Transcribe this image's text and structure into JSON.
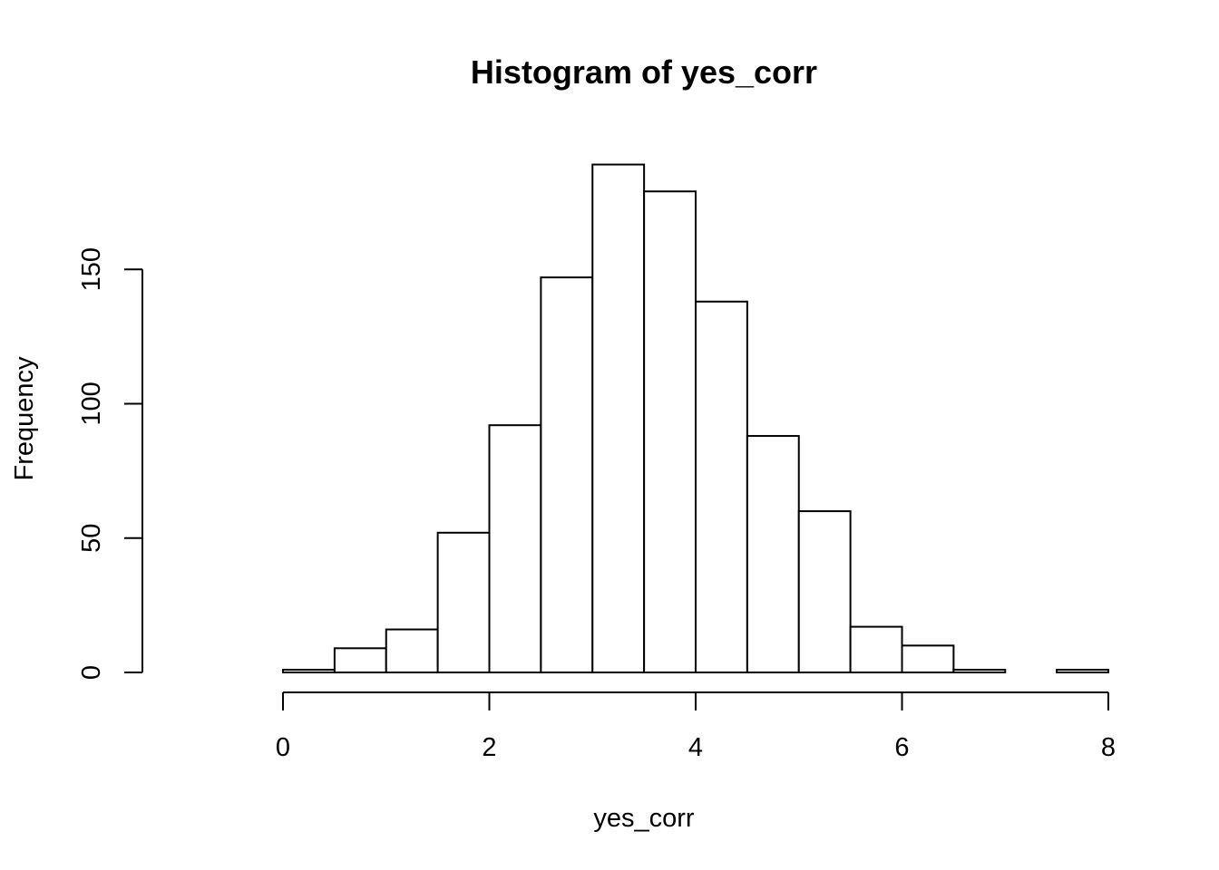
{
  "chart_data": {
    "type": "bar",
    "title": "Histogram of yes_corr",
    "xlabel": "yes_corr",
    "ylabel": "Frequency",
    "bin_width": 0.5,
    "bins": [
      {
        "start": -1.0,
        "end": -0.5,
        "count": 0
      },
      {
        "start": -0.5,
        "end": 0.0,
        "count": 0
      },
      {
        "start": 0.0,
        "end": 0.5,
        "count": 1
      },
      {
        "start": 0.5,
        "end": 1.0,
        "count": 9
      },
      {
        "start": 1.0,
        "end": 1.5,
        "count": 16
      },
      {
        "start": 1.5,
        "end": 2.0,
        "count": 52
      },
      {
        "start": 2.0,
        "end": 2.5,
        "count": 92
      },
      {
        "start": 2.5,
        "end": 3.0,
        "count": 147
      },
      {
        "start": 3.0,
        "end": 3.5,
        "count": 189
      },
      {
        "start": 3.5,
        "end": 4.0,
        "count": 179
      },
      {
        "start": 4.0,
        "end": 4.5,
        "count": 138
      },
      {
        "start": 4.5,
        "end": 5.0,
        "count": 88
      },
      {
        "start": 5.0,
        "end": 5.5,
        "count": 60
      },
      {
        "start": 5.5,
        "end": 6.0,
        "count": 17
      },
      {
        "start": 6.0,
        "end": 6.5,
        "count": 10
      },
      {
        "start": 6.5,
        "end": 7.0,
        "count": 1
      },
      {
        "start": 7.0,
        "end": 7.5,
        "count": 0
      },
      {
        "start": 7.5,
        "end": 8.0,
        "count": 1
      }
    ],
    "xlim": [
      -1,
      8
    ],
    "ylim": [
      0,
      190
    ],
    "x_ticks": [
      0,
      2,
      4,
      6,
      8
    ],
    "x_tick_labels": [
      "0",
      "2",
      "4",
      "6",
      "8"
    ],
    "y_ticks": [
      0,
      50,
      100,
      150
    ],
    "y_tick_labels": [
      "0",
      "50",
      "100",
      "150"
    ],
    "grid": false,
    "legend": "none",
    "bar_fill": "#ffffff",
    "bar_stroke": "#000000"
  }
}
